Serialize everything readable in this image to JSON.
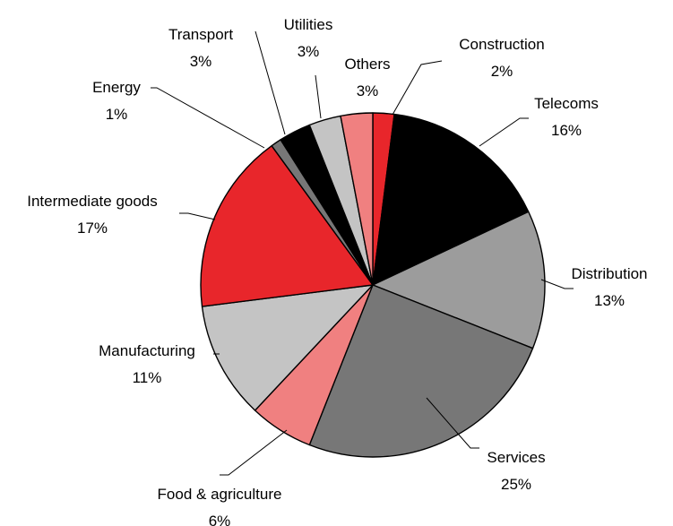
{
  "chart_data": {
    "type": "pie",
    "title": "",
    "start": "12 o'clock",
    "direction": "clockwise",
    "slices": [
      {
        "label": "Construction",
        "value": 2,
        "display": "2%",
        "color": "#e8262b"
      },
      {
        "label": "Telecoms",
        "value": 16,
        "display": "16%",
        "color": "#000000"
      },
      {
        "label": "Distribution",
        "value": 13,
        "display": "13%",
        "color": "#9c9c9c"
      },
      {
        "label": "Services",
        "value": 25,
        "display": "25%",
        "color": "#777777"
      },
      {
        "label": "Food & agriculture",
        "value": 6,
        "display": "6%",
        "color": "#f08080"
      },
      {
        "label": "Manufacturing",
        "value": 11,
        "display": "11%",
        "color": "#c4c4c4"
      },
      {
        "label": "Intermediate goods",
        "value": 17,
        "display": "17%",
        "color": "#e8262b"
      },
      {
        "label": "Energy",
        "value": 1,
        "display": "1%",
        "color": "#777777"
      },
      {
        "label": "Transport",
        "value": 3,
        "display": "3%",
        "color": "#000000"
      },
      {
        "label": "Utilities",
        "value": 3,
        "display": "3%",
        "color": "#c4c4c4"
      },
      {
        "label": "Others",
        "value": 3,
        "display": "3%",
        "color": "#f08080"
      }
    ]
  }
}
